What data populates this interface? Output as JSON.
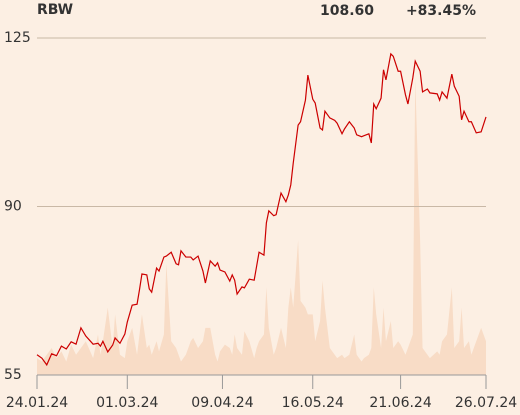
{
  "chart_data": {
    "type": "line",
    "title": "RBW",
    "price_label": "108.60",
    "change_label": "+83.45%",
    "change_color": "#1a9a1a",
    "x": [
      "2024-01-24",
      "2024-01-26",
      "2024-01-28",
      "2024-01-30",
      "2024-02-01",
      "2024-02-03",
      "2024-02-05",
      "2024-02-07",
      "2024-02-09",
      "2024-02-11",
      "2024-02-13",
      "2024-02-16",
      "2024-02-18",
      "2024-02-19",
      "2024-02-20",
      "2024-02-22",
      "2024-02-24",
      "2024-02-25",
      "2024-02-27",
      "2024-02-29",
      "2024-03-01",
      "2024-03-03",
      "2024-03-05",
      "2024-03-06",
      "2024-03-07",
      "2024-03-09",
      "2024-03-10",
      "2024-03-11",
      "2024-03-13",
      "2024-03-14",
      "2024-03-16",
      "2024-03-17",
      "2024-03-19",
      "2024-03-21",
      "2024-03-22",
      "2024-03-23",
      "2024-03-25",
      "2024-03-27",
      "2024-03-28",
      "2024-03-30",
      "2024-04-01",
      "2024-04-02",
      "2024-04-04",
      "2024-04-06",
      "2024-04-07",
      "2024-04-08",
      "2024-04-10",
      "2024-04-12",
      "2024-04-13",
      "2024-04-14",
      "2024-04-15",
      "2024-04-17",
      "2024-04-18",
      "2024-04-20",
      "2024-04-22",
      "2024-04-23",
      "2024-04-24",
      "2024-04-26",
      "2024-04-27",
      "2024-04-28",
      "2024-04-30",
      "2024-05-01",
      "2024-05-03",
      "2024-05-05",
      "2024-05-06",
      "2024-05-07",
      "2024-05-08",
      "2024-05-10",
      "2024-05-11",
      "2024-05-13",
      "2024-05-14",
      "2024-05-16",
      "2024-05-17",
      "2024-05-19",
      "2024-05-20",
      "2024-05-21",
      "2024-05-23",
      "2024-05-25",
      "2024-05-26",
      "2024-05-28",
      "2024-05-29",
      "2024-05-31",
      "2024-06-02",
      "2024-06-03",
      "2024-06-05",
      "2024-06-06",
      "2024-06-08",
      "2024-06-09",
      "2024-06-10",
      "2024-06-11",
      "2024-06-13",
      "2024-06-14",
      "2024-06-15",
      "2024-06-17",
      "2024-06-18",
      "2024-06-20",
      "2024-06-21",
      "2024-06-23",
      "2024-06-24",
      "2024-06-26",
      "2024-06-27",
      "2024-06-29",
      "2024-06-30",
      "2024-07-02",
      "2024-07-03",
      "2024-07-06",
      "2024-07-07",
      "2024-07-08",
      "2024-07-10",
      "2024-07-12",
      "2024-07-13",
      "2024-07-15",
      "2024-07-16",
      "2024-07-17",
      "2024-07-19",
      "2024-07-20",
      "2024-07-22",
      "2024-07-24",
      "2024-07-26"
    ],
    "values": [
      59.2,
      58.5,
      57.1,
      59.4,
      59.0,
      61.0,
      60.4,
      61.9,
      61.4,
      64.8,
      63.1,
      61.4,
      61.6,
      61.0,
      62.0,
      59.8,
      61.2,
      62.7,
      61.6,
      63.5,
      66.0,
      69.5,
      69.7,
      72.7,
      76.0,
      75.8,
      72.9,
      72.2,
      77.2,
      76.6,
      79.5,
      79.7,
      80.5,
      78.1,
      77.9,
      80.8,
      79.5,
      79.5,
      78.9,
      79.7,
      76.6,
      74.1,
      78.7,
      77.6,
      78.3,
      76.8,
      76.4,
      74.5,
      75.8,
      74.7,
      71.8,
      73.3,
      73.1,
      74.9,
      74.7,
      77.6,
      80.5,
      79.9,
      86.6,
      89.1,
      88.1,
      88.3,
      92.8,
      91.0,
      92.4,
      94.5,
      99.0,
      106.9,
      107.6,
      112.1,
      117.3,
      112.3,
      111.5,
      106.3,
      105.9,
      109.8,
      108.4,
      107.9,
      107.3,
      105.1,
      106.1,
      107.6,
      106.3,
      104.9,
      104.5,
      104.7,
      105.1,
      103.2,
      111.3,
      110.3,
      112.5,
      118.4,
      116.3,
      121.7,
      121.2,
      118.1,
      118.1,
      113.2,
      111.3,
      116.7,
      120.2,
      118.1,
      113.8,
      114.4,
      113.6,
      113.4,
      112.1,
      113.8,
      112.5,
      117.5,
      115.0,
      112.9,
      108.0,
      109.8,
      107.6,
      107.6,
      105.3,
      105.5,
      108.6
    ],
    "color": "#cc0000",
    "volume": {
      "color": "#f8dcc6",
      "values": [
        5,
        4,
        6,
        8,
        5,
        7,
        4,
        9,
        6,
        8,
        10,
        5,
        12,
        6,
        10,
        20,
        8,
        18,
        6,
        5,
        10,
        14,
        6,
        12,
        18,
        8,
        9,
        6,
        10,
        7,
        12,
        33,
        10,
        8,
        6,
        4,
        6,
        10,
        11,
        8,
        10,
        14,
        14,
        6,
        4,
        7,
        9,
        8,
        6,
        12,
        8,
        6,
        13,
        10,
        5,
        8,
        10,
        12,
        26,
        14,
        6,
        8,
        14,
        8,
        20,
        26,
        20,
        40,
        22,
        20,
        18,
        18,
        10,
        16,
        28,
        20,
        8,
        6,
        5,
        6,
        5,
        6,
        12,
        6,
        4,
        5,
        6,
        8,
        26,
        18,
        8,
        20,
        10,
        16,
        8,
        10,
        9,
        6,
        8,
        12,
        88,
        40,
        8,
        6,
        5,
        7,
        6,
        10,
        12,
        26,
        8,
        10,
        20,
        8,
        10,
        6,
        10,
        14,
        10
      ]
    },
    "xlim": [
      "2024-01-24",
      "2024-07-26"
    ],
    "xticks": [
      {
        "value": "2024-01-24",
        "label": "24.01.24"
      },
      {
        "value": "2024-03-01",
        "label": "01.03.24"
      },
      {
        "value": "2024-04-09",
        "label": "09.04.24"
      },
      {
        "value": "2024-05-16",
        "label": "16.05.24"
      },
      {
        "value": "2024-06-21",
        "label": "21.06.24"
      },
      {
        "value": "2024-07-26",
        "label": "26.07.24"
      }
    ],
    "ylim": [
      55,
      125
    ],
    "yticks": [
      55,
      90,
      125
    ],
    "y2lim": [
      0,
      100
    ],
    "grid": true
  }
}
